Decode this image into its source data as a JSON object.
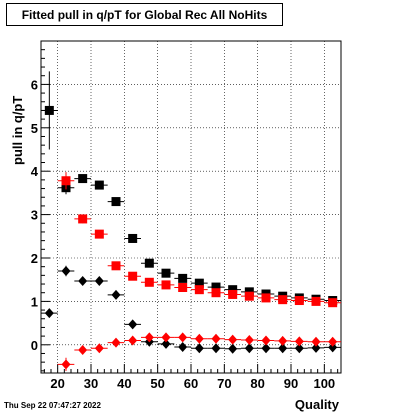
{
  "chart_data": {
    "type": "scatter",
    "title": "Fitted pull in q/pT for Global Rec All NoHits",
    "xlabel": "Quality",
    "ylabel": "pull in q/pT",
    "xlim": [
      15,
      105
    ],
    "ylim": [
      -0.65,
      7.0
    ],
    "x_ticks": [
      20,
      30,
      40,
      50,
      60,
      70,
      80,
      90,
      100
    ],
    "y_ticks": [
      0,
      1,
      2,
      3,
      4,
      5,
      6
    ],
    "grid": true,
    "series": [
      {
        "color": "#000000",
        "marker": "square",
        "points": [
          {
            "x": 17.5,
            "y": 5.4,
            "yerr": 0.9
          },
          {
            "x": 22.5,
            "y": 3.62,
            "yerr": 0.15
          },
          {
            "x": 27.5,
            "y": 3.83,
            "yerr": 0.06
          },
          {
            "x": 32.5,
            "y": 3.68,
            "yerr": 0.05
          },
          {
            "x": 37.5,
            "y": 3.3,
            "yerr": 0.04
          },
          {
            "x": 42.5,
            "y": 2.45,
            "yerr": 0.04
          },
          {
            "x": 47.5,
            "y": 1.88,
            "yerr": 0.03
          },
          {
            "x": 52.5,
            "y": 1.65,
            "yerr": 0.03
          },
          {
            "x": 57.5,
            "y": 1.53,
            "yerr": 0.03
          },
          {
            "x": 62.5,
            "y": 1.42,
            "yerr": 0.02
          },
          {
            "x": 67.5,
            "y": 1.33,
            "yerr": 0.02
          },
          {
            "x": 72.5,
            "y": 1.27,
            "yerr": 0.02
          },
          {
            "x": 77.5,
            "y": 1.22,
            "yerr": 0.02
          },
          {
            "x": 82.5,
            "y": 1.17,
            "yerr": 0.02
          },
          {
            "x": 87.5,
            "y": 1.12,
            "yerr": 0.02
          },
          {
            "x": 92.5,
            "y": 1.08,
            "yerr": 0.02
          },
          {
            "x": 97.5,
            "y": 1.05,
            "yerr": 0.02
          },
          {
            "x": 102.5,
            "y": 1.02,
            "yerr": 0.02
          }
        ]
      },
      {
        "color": "#ff0000",
        "marker": "square",
        "points": [
          {
            "x": 22.5,
            "y": 3.78,
            "yerr": 0.2
          },
          {
            "x": 27.5,
            "y": 2.9,
            "yerr": 0.1
          },
          {
            "x": 32.5,
            "y": 2.55,
            "yerr": 0.05
          },
          {
            "x": 37.5,
            "y": 1.82,
            "yerr": 0.04
          },
          {
            "x": 42.5,
            "y": 1.58,
            "yerr": 0.04
          },
          {
            "x": 47.5,
            "y": 1.44,
            "yerr": 0.03
          },
          {
            "x": 52.5,
            "y": 1.38,
            "yerr": 0.03
          },
          {
            "x": 57.5,
            "y": 1.32,
            "yerr": 0.03
          },
          {
            "x": 62.5,
            "y": 1.27,
            "yerr": 0.02
          },
          {
            "x": 67.5,
            "y": 1.2,
            "yerr": 0.02
          },
          {
            "x": 72.5,
            "y": 1.16,
            "yerr": 0.02
          },
          {
            "x": 77.5,
            "y": 1.12,
            "yerr": 0.02
          },
          {
            "x": 82.5,
            "y": 1.08,
            "yerr": 0.02
          },
          {
            "x": 87.5,
            "y": 1.04,
            "yerr": 0.02
          },
          {
            "x": 92.5,
            "y": 1.02,
            "yerr": 0.02
          },
          {
            "x": 97.5,
            "y": 1.0,
            "yerr": 0.02
          },
          {
            "x": 102.5,
            "y": 0.97,
            "yerr": 0.02
          }
        ]
      },
      {
        "color": "#000000",
        "marker": "diamond",
        "points": [
          {
            "x": 17.5,
            "y": 0.73,
            "yerr": 0.1
          },
          {
            "x": 22.5,
            "y": 1.7,
            "yerr": 0.12
          },
          {
            "x": 27.5,
            "y": 1.47,
            "yerr": 0.04
          },
          {
            "x": 32.5,
            "y": 1.47,
            "yerr": 0.03
          },
          {
            "x": 37.5,
            "y": 1.15,
            "yerr": 0.03
          },
          {
            "x": 42.5,
            "y": 0.47,
            "yerr": 0.03
          },
          {
            "x": 47.5,
            "y": 0.07,
            "yerr": 0.02
          },
          {
            "x": 52.5,
            "y": 0.02,
            "yerr": 0.02
          },
          {
            "x": 57.5,
            "y": -0.05,
            "yerr": 0.02
          },
          {
            "x": 62.5,
            "y": -0.08,
            "yerr": 0.02
          },
          {
            "x": 67.5,
            "y": -0.08,
            "yerr": 0.02
          },
          {
            "x": 72.5,
            "y": -0.09,
            "yerr": 0.02
          },
          {
            "x": 77.5,
            "y": -0.08,
            "yerr": 0.02
          },
          {
            "x": 82.5,
            "y": -0.08,
            "yerr": 0.02
          },
          {
            "x": 87.5,
            "y": -0.08,
            "yerr": 0.02
          },
          {
            "x": 92.5,
            "y": -0.08,
            "yerr": 0.02
          },
          {
            "x": 97.5,
            "y": -0.07,
            "yerr": 0.02
          },
          {
            "x": 102.5,
            "y": -0.06,
            "yerr": 0.02
          }
        ]
      },
      {
        "color": "#ff0000",
        "marker": "diamond",
        "points": [
          {
            "x": 22.5,
            "y": -0.45,
            "yerr": 0.15
          },
          {
            "x": 27.5,
            "y": -0.12,
            "yerr": 0.05
          },
          {
            "x": 32.5,
            "y": -0.08,
            "yerr": 0.03
          },
          {
            "x": 37.5,
            "y": 0.05,
            "yerr": 0.03
          },
          {
            "x": 42.5,
            "y": 0.1,
            "yerr": 0.02
          },
          {
            "x": 47.5,
            "y": 0.17,
            "yerr": 0.02
          },
          {
            "x": 52.5,
            "y": 0.17,
            "yerr": 0.02
          },
          {
            "x": 57.5,
            "y": 0.17,
            "yerr": 0.02
          },
          {
            "x": 62.5,
            "y": 0.14,
            "yerr": 0.02
          },
          {
            "x": 67.5,
            "y": 0.14,
            "yerr": 0.02
          },
          {
            "x": 72.5,
            "y": 0.12,
            "yerr": 0.02
          },
          {
            "x": 77.5,
            "y": 0.11,
            "yerr": 0.02
          },
          {
            "x": 82.5,
            "y": 0.1,
            "yerr": 0.02
          },
          {
            "x": 87.5,
            "y": 0.09,
            "yerr": 0.02
          },
          {
            "x": 92.5,
            "y": 0.08,
            "yerr": 0.02
          },
          {
            "x": 97.5,
            "y": 0.07,
            "yerr": 0.02
          },
          {
            "x": 102.5,
            "y": 0.07,
            "yerr": 0.02
          }
        ]
      }
    ]
  },
  "timestamp": "Thu Sep 22 07:47:27 2022"
}
